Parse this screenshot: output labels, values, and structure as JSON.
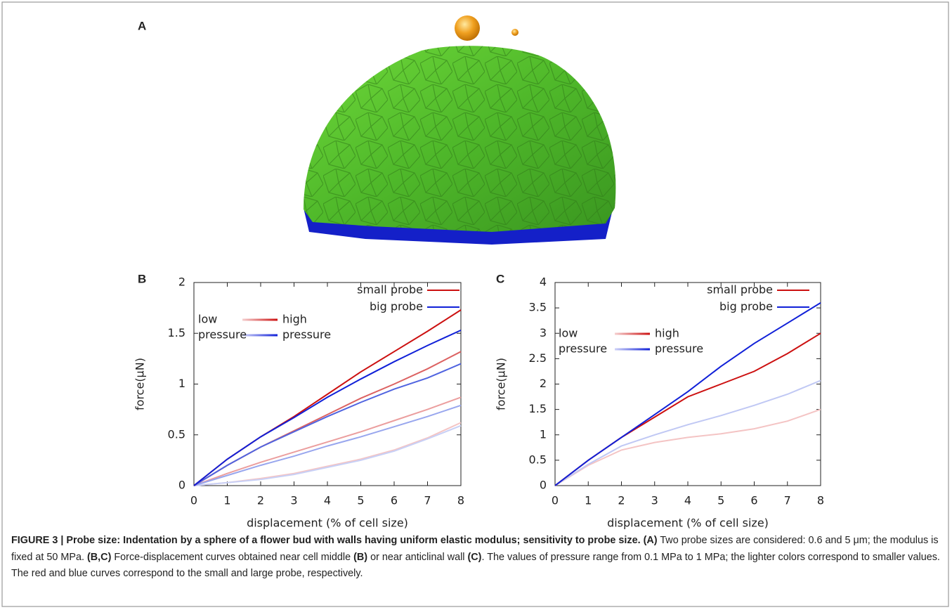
{
  "panel_a": {
    "label": "A"
  },
  "chart_data": [
    {
      "type": "line",
      "panel_label": "B",
      "xlabel": "displacement (% of cell size)",
      "ylabel": "force(μN)",
      "x": [
        0,
        1,
        2,
        3,
        4,
        5,
        6,
        7,
        8
      ],
      "xlim": [
        0,
        8
      ],
      "xticks": [
        0,
        1,
        2,
        3,
        4,
        5,
        6,
        7,
        8
      ],
      "ylim": [
        0,
        2
      ],
      "yticks": [
        0,
        0.5,
        1,
        1.5,
        2
      ],
      "series": [
        {
          "color": "#f4c4c4",
          "values": [
            0,
            0.03,
            0.07,
            0.12,
            0.19,
            0.26,
            0.35,
            0.47,
            0.62
          ]
        },
        {
          "color": "#c8d0f6",
          "values": [
            0,
            0.03,
            0.06,
            0.11,
            0.18,
            0.25,
            0.34,
            0.46,
            0.59
          ]
        },
        {
          "color": "#eb9e9e",
          "values": [
            0,
            0.12,
            0.23,
            0.33,
            0.43,
            0.53,
            0.64,
            0.75,
            0.87
          ]
        },
        {
          "color": "#98a6ee",
          "values": [
            0,
            0.1,
            0.2,
            0.29,
            0.39,
            0.48,
            0.58,
            0.68,
            0.79
          ]
        },
        {
          "color": "#dc6262",
          "values": [
            0,
            0.2,
            0.38,
            0.54,
            0.7,
            0.86,
            1.0,
            1.15,
            1.32
          ]
        },
        {
          "color": "#5064e0",
          "values": [
            0,
            0.2,
            0.38,
            0.53,
            0.68,
            0.82,
            0.95,
            1.06,
            1.2
          ]
        },
        {
          "color": "#cc1010",
          "values": [
            0,
            0.26,
            0.48,
            0.68,
            0.9,
            1.12,
            1.32,
            1.52,
            1.73
          ]
        },
        {
          "color": "#1020d8",
          "values": [
            0,
            0.26,
            0.48,
            0.67,
            0.87,
            1.05,
            1.22,
            1.38,
            1.53
          ]
        }
      ],
      "legend": {
        "entries": [
          {
            "label": "small probe",
            "color": "#cc1010"
          },
          {
            "label": "big probe",
            "color": "#1020d8"
          }
        ],
        "low": [
          "low",
          "pressure"
        ],
        "high": [
          "high",
          "pressure"
        ]
      }
    },
    {
      "type": "line",
      "panel_label": "C",
      "xlabel": "displacement (% of cell size)",
      "ylabel": "force(μN)",
      "x": [
        0,
        1,
        2,
        3,
        4,
        5,
        6,
        7,
        8
      ],
      "xlim": [
        0,
        8
      ],
      "xticks": [
        0,
        1,
        2,
        3,
        4,
        5,
        6,
        7,
        8
      ],
      "ylim": [
        0,
        4
      ],
      "yticks": [
        0,
        0.5,
        1,
        1.5,
        2,
        2.5,
        3,
        3.5,
        4
      ],
      "series": [
        {
          "color": "#f4c4c4",
          "values": [
            0,
            0.4,
            0.7,
            0.85,
            0.95,
            1.02,
            1.12,
            1.27,
            1.5
          ]
        },
        {
          "color": "#c0c8f4",
          "values": [
            0,
            0.42,
            0.78,
            1.0,
            1.2,
            1.38,
            1.58,
            1.8,
            2.07
          ]
        },
        {
          "color": "#cc1010",
          "values": [
            0,
            0.5,
            0.95,
            1.35,
            1.75,
            2.0,
            2.25,
            2.6,
            3.0
          ]
        },
        {
          "color": "#1020d8",
          "values": [
            0,
            0.5,
            0.95,
            1.4,
            1.85,
            2.35,
            2.8,
            3.2,
            3.6
          ]
        }
      ],
      "legend": {
        "entries": [
          {
            "label": "small probe",
            "color": "#cc1010"
          },
          {
            "label": "big probe",
            "color": "#1020d8"
          }
        ],
        "low": [
          "low",
          "pressure"
        ],
        "high": [
          "high",
          "pressure"
        ]
      }
    }
  ],
  "caption": [
    {
      "text": "FIGURE 3 | Probe size: Indentation by a sphere of a flower bud with walls having uniform elastic modulus; sensitivity to probe size.",
      "bold": true
    },
    {
      "text": " ",
      "bold": false
    },
    {
      "text": "(A)",
      "bold": true
    },
    {
      "text": " Two probe sizes are considered: 0.6 and 5 μm; the modulus is fixed at 50 MPa. ",
      "bold": false
    },
    {
      "text": "(B,C)",
      "bold": true
    },
    {
      "text": " Force-displacement curves obtained near cell middle ",
      "bold": false
    },
    {
      "text": "(B)",
      "bold": true
    },
    {
      "text": " or near anticlinal wall ",
      "bold": false
    },
    {
      "text": "(C)",
      "bold": true
    },
    {
      "text": ". The values of pressure range from 0.1 MPa to 1 MPa; the lighter colors correspond to smaller values. The red and blue curves correspond to the small and large probe, respectively.",
      "bold": false
    }
  ]
}
